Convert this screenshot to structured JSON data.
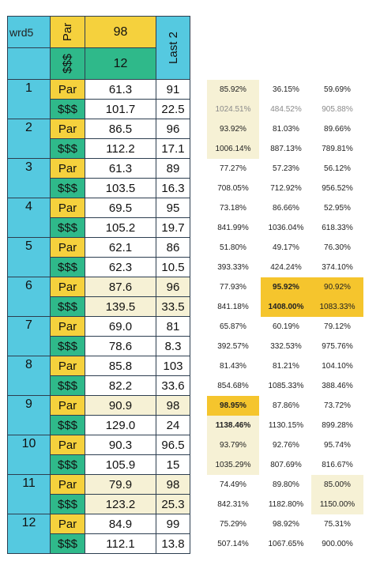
{
  "header": {
    "name": "wrd5",
    "par_label": "Par",
    "money_label": "$$$",
    "par_value": "98",
    "money_value": "12",
    "last_label": "Last 2"
  },
  "rows": [
    {
      "num": "1",
      "par": {
        "label": "Par",
        "value": "61.3",
        "last": "91"
      },
      "money": {
        "label": "$$$",
        "value": "101.7",
        "last": "22.5"
      }
    },
    {
      "num": "2",
      "par": {
        "label": "Par",
        "value": "86.5",
        "last": "96"
      },
      "money": {
        "label": "$$$",
        "value": "112.2",
        "last": "17.1"
      }
    },
    {
      "num": "3",
      "par": {
        "label": "Par",
        "value": "61.3",
        "last": "89"
      },
      "money": {
        "label": "$$$",
        "value": "103.5",
        "last": "16.3"
      }
    },
    {
      "num": "4",
      "par": {
        "label": "Par",
        "value": "69.5",
        "last": "95"
      },
      "money": {
        "label": "$$$",
        "value": "105.2",
        "last": "19.7"
      }
    },
    {
      "num": "5",
      "par": {
        "label": "Par",
        "value": "62.1",
        "last": "86"
      },
      "money": {
        "label": "$$$",
        "value": "62.3",
        "last": "10.5"
      }
    },
    {
      "num": "6",
      "par": {
        "label": "Par",
        "value": "87.6",
        "last": "96"
      },
      "money": {
        "label": "$$$",
        "value": "139.5",
        "last": "33.5"
      }
    },
    {
      "num": "7",
      "par": {
        "label": "Par",
        "value": "69.0",
        "last": "81"
      },
      "money": {
        "label": "$$$",
        "value": "78.6",
        "last": "8.3"
      }
    },
    {
      "num": "8",
      "par": {
        "label": "Par",
        "value": "85.8",
        "last": "103"
      },
      "money": {
        "label": "$$$",
        "value": "82.2",
        "last": "33.6"
      }
    },
    {
      "num": "9",
      "par": {
        "label": "Par",
        "value": "90.9",
        "last": "98"
      },
      "money": {
        "label": "$$$",
        "value": "129.0",
        "last": "24"
      }
    },
    {
      "num": "10",
      "par": {
        "label": "Par",
        "value": "90.3",
        "last": "96.5"
      },
      "money": {
        "label": "$$$",
        "value": "105.9",
        "last": "15"
      }
    },
    {
      "num": "11",
      "par": {
        "label": "Par",
        "value": "79.9",
        "last": "98"
      },
      "money": {
        "label": "$$$",
        "value": "123.2",
        "last": "25.3"
      }
    },
    {
      "num": "12",
      "par": {
        "label": "Par",
        "value": "84.9",
        "last": "99"
      },
      "money": {
        "label": "$$$",
        "value": "112.1",
        "last": "13.8"
      }
    }
  ],
  "percentages": [
    [
      "85.92%",
      "36.15%",
      "59.69%"
    ],
    [
      "1024.51%",
      "484.52%",
      "905.88%"
    ],
    [
      "93.92%",
      "81.03%",
      "89.66%"
    ],
    [
      "1006.14%",
      "887.13%",
      "789.81%"
    ],
    [
      "77.27%",
      "57.23%",
      "56.12%"
    ],
    [
      "708.05%",
      "712.92%",
      "956.52%"
    ],
    [
      "73.18%",
      "86.66%",
      "52.95%"
    ],
    [
      "841.99%",
      "1036.04%",
      "618.33%"
    ],
    [
      "51.80%",
      "49.17%",
      "76.30%"
    ],
    [
      "393.33%",
      "424.24%",
      "374.10%"
    ],
    [
      "77.93%",
      "95.92%",
      "90.92%"
    ],
    [
      "841.18%",
      "1408.00%",
      "1083.33%"
    ],
    [
      "65.87%",
      "60.19%",
      "79.12%"
    ],
    [
      "392.57%",
      "332.53%",
      "975.76%"
    ],
    [
      "81.43%",
      "81.21%",
      "104.10%"
    ],
    [
      "854.68%",
      "1085.33%",
      "388.46%"
    ],
    [
      "98.95%",
      "87.86%",
      "73.72%"
    ],
    [
      "1138.46%",
      "1130.15%",
      "899.28%"
    ],
    [
      "93.79%",
      "92.76%",
      "95.74%"
    ],
    [
      "1035.29%",
      "807.69%",
      "816.67%"
    ],
    [
      "74.49%",
      "89.80%",
      "85.00%"
    ],
    [
      "842.31%",
      "1182.80%",
      "1150.00%"
    ],
    [
      "75.29%",
      "98.92%",
      "75.31%"
    ],
    [
      "507.14%",
      "1067.65%",
      "900.00%"
    ]
  ],
  "colors": {
    "cyan": "#55c9e0",
    "yellow": "#f5d13d",
    "green": "#2fb98a",
    "cream": "#f6f1d5",
    "highlight": "#f5c52d"
  }
}
